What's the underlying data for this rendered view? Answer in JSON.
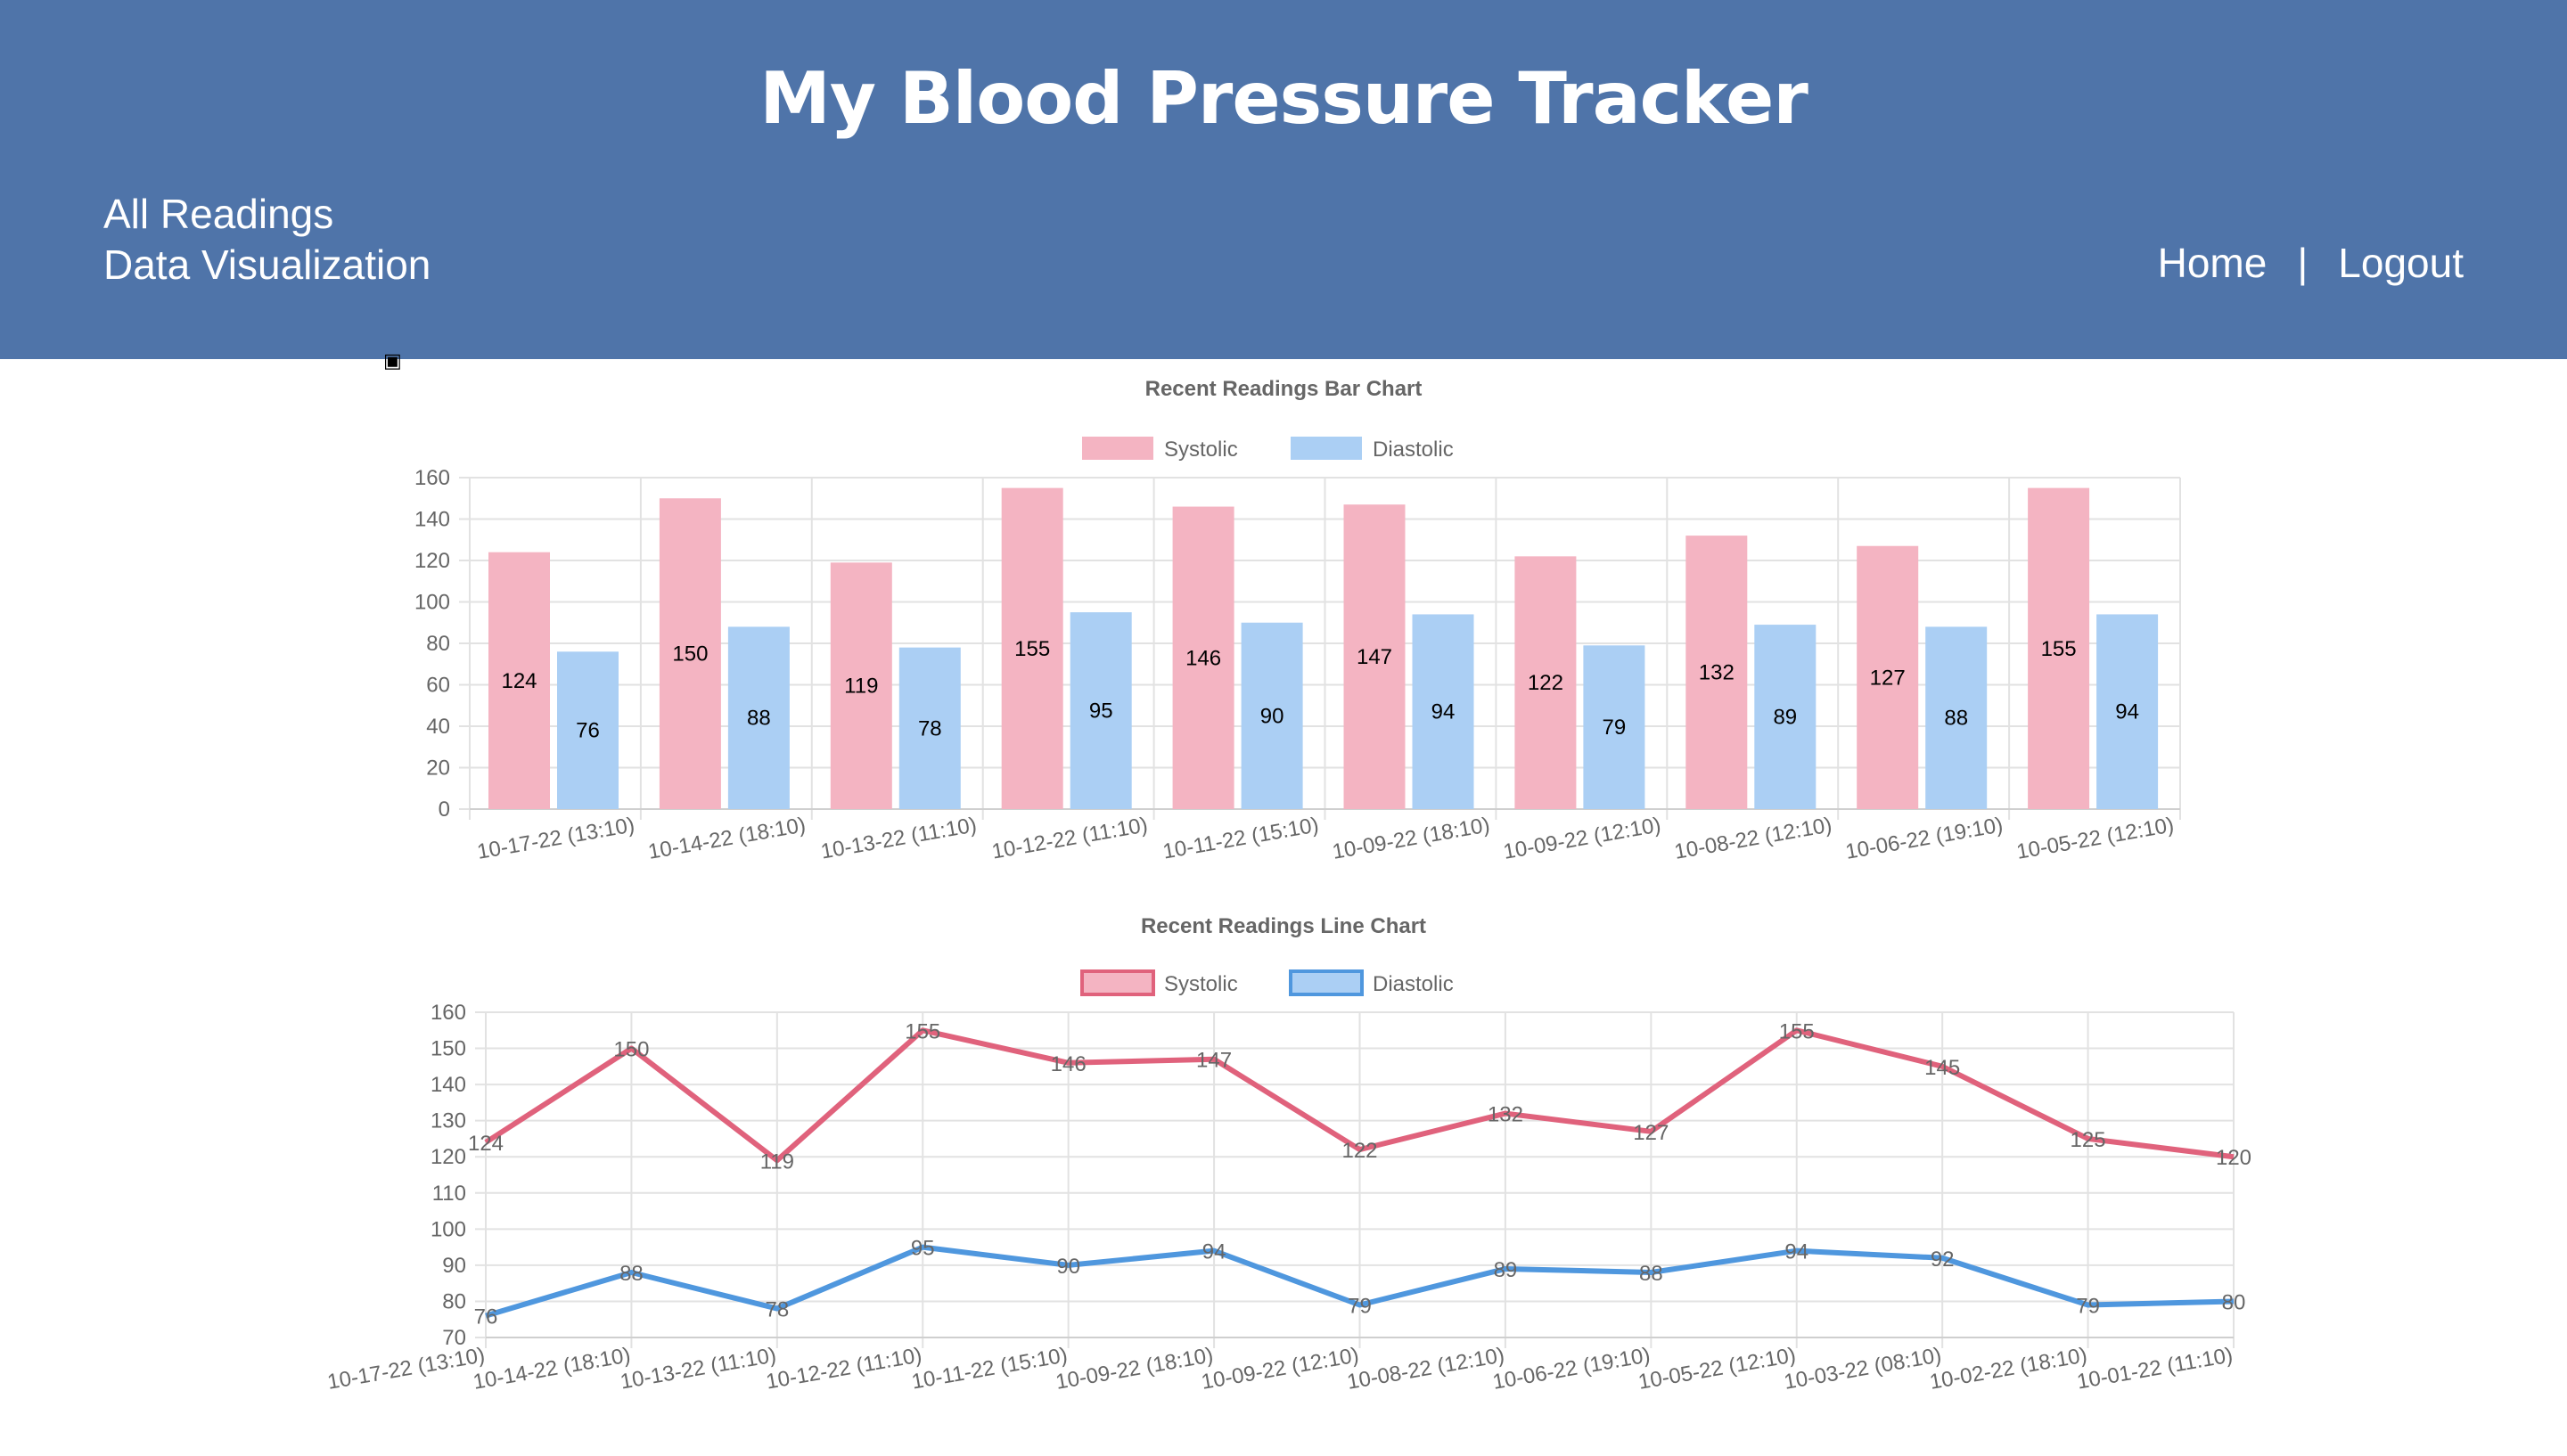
{
  "header": {
    "title": "My Blood Pressure Tracker",
    "nav_left": [
      "All Readings",
      "Data Visualization"
    ],
    "nav_right": {
      "home": "Home",
      "separator": "|",
      "logout": "Logout"
    },
    "background_color": "#4f74a9"
  },
  "colors": {
    "systolic_fill": "#f4b4c2",
    "systolic_line": "#e0627c",
    "diastolic_fill": "#abcff4",
    "diastolic_line": "#4f97de"
  },
  "chart_data": [
    {
      "type": "bar",
      "title": "Recent Readings Bar Chart",
      "legend": "top",
      "grid": true,
      "ylim": [
        0,
        160
      ],
      "yticks": [
        0,
        20,
        40,
        60,
        80,
        100,
        120,
        140,
        160
      ],
      "categories": [
        "10-17-22  (13:10)",
        "10-14-22  (18:10)",
        "10-13-22  (11:10)",
        "10-12-22  (11:10)",
        "10-11-22  (15:10)",
        "10-09-22  (18:10)",
        "10-09-22  (12:10)",
        "10-08-22  (12:10)",
        "10-06-22  (19:10)",
        "10-05-22  (12:10)"
      ],
      "series": [
        {
          "name": "Systolic",
          "values": [
            124,
            150,
            119,
            155,
            146,
            147,
            122,
            132,
            127,
            155
          ]
        },
        {
          "name": "Diastolic",
          "values": [
            76,
            88,
            78,
            95,
            90,
            94,
            79,
            89,
            88,
            94
          ]
        }
      ]
    },
    {
      "type": "line",
      "title": "Recent Readings Line Chart",
      "legend": "top",
      "grid": true,
      "ylim": [
        70,
        160
      ],
      "yticks": [
        70,
        80,
        90,
        100,
        110,
        120,
        130,
        140,
        150,
        160
      ],
      "categories": [
        "10-17-22  (13:10)",
        "10-14-22  (18:10)",
        "10-13-22  (11:10)",
        "10-12-22  (11:10)",
        "10-11-22  (15:10)",
        "10-09-22  (18:10)",
        "10-09-22  (12:10)",
        "10-08-22  (12:10)",
        "10-06-22  (19:10)",
        "10-05-22  (12:10)",
        "10-03-22  (08:10)",
        "10-02-22  (18:10)",
        "10-01-22  (11:10)"
      ],
      "series": [
        {
          "name": "Systolic",
          "values": [
            124,
            150,
            119,
            155,
            146,
            147,
            122,
            132,
            127,
            155,
            145,
            125,
            120
          ]
        },
        {
          "name": "Diastolic",
          "values": [
            76,
            88,
            78,
            95,
            90,
            94,
            79,
            89,
            88,
            94,
            92,
            79,
            80
          ]
        }
      ]
    }
  ]
}
